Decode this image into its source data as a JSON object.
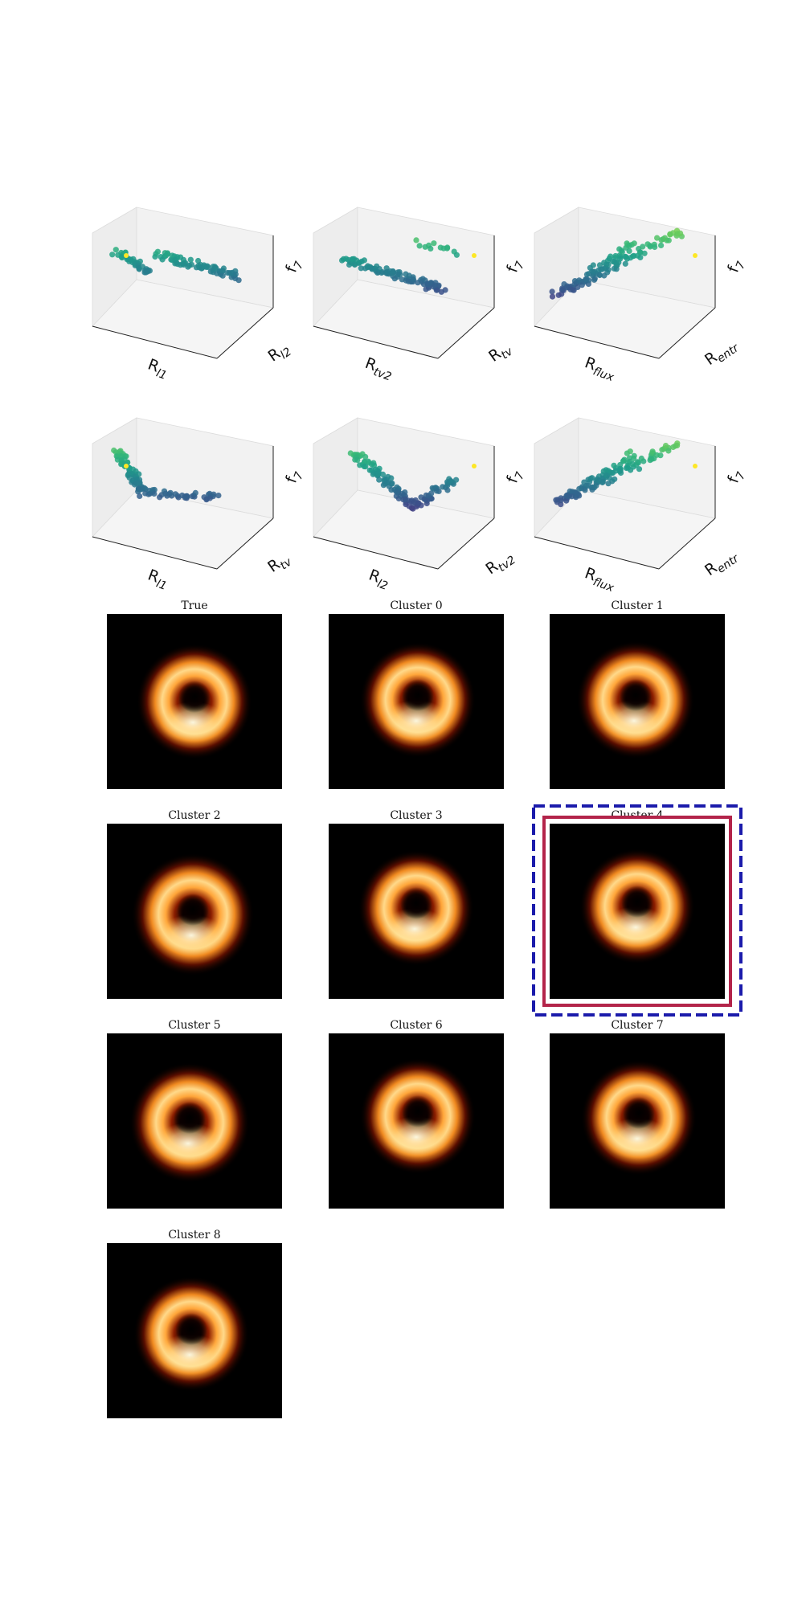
{
  "chart_data": [
    {
      "type": "scatter",
      "kind": "3d-scatter-grid",
      "colormap": "viridis",
      "grid": true,
      "panels": [
        {
          "xlabel": "R",
          "xsub": "l1",
          "ylabel": "R",
          "ysub": "l2",
          "zlabel": "f",
          "zsub": "7"
        },
        {
          "xlabel": "R",
          "xsub": "tv2",
          "ylabel": "R",
          "ysub": "tv",
          "zlabel": "f",
          "zsub": "7"
        },
        {
          "xlabel": "R",
          "xsub": "flux",
          "ylabel": "R",
          "ysub": "entr",
          "zlabel": "f",
          "zsub": "7"
        },
        {
          "xlabel": "R",
          "xsub": "l1",
          "ylabel": "R",
          "ysub": "tv",
          "zlabel": "f",
          "zsub": "7"
        },
        {
          "xlabel": "R",
          "xsub": "l2",
          "ylabel": "R",
          "ysub": "tv2",
          "zlabel": "f",
          "zsub": "7"
        },
        {
          "xlabel": "R",
          "xsub": "flux",
          "ylabel": "R",
          "ysub": "entr",
          "zlabel": "f",
          "zsub": "7"
        }
      ]
    },
    {
      "type": "heatmap",
      "kind": "image-grid",
      "colormap": "afmhot",
      "images": [
        {
          "title": "True"
        },
        {
          "title": "Cluster 0"
        },
        {
          "title": "Cluster 1"
        },
        {
          "title": "Cluster 2"
        },
        {
          "title": "Cluster 3"
        },
        {
          "title": "Cluster 4",
          "highlighted": true
        },
        {
          "title": "Cluster 5"
        },
        {
          "title": "Cluster 6"
        },
        {
          "title": "Cluster 7"
        },
        {
          "title": "Cluster 8"
        }
      ],
      "highlight": {
        "outer_color": "#1b1bab",
        "inner_color": "#b3244a"
      }
    }
  ]
}
